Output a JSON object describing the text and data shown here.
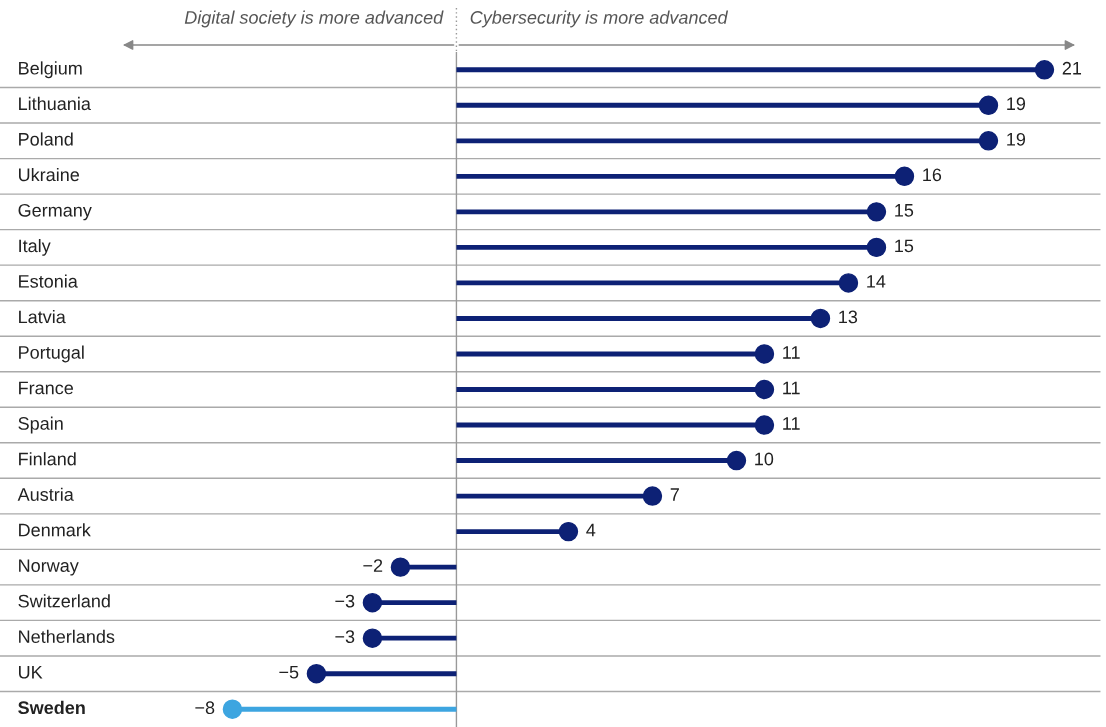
{
  "chart_data": {
    "type": "lollipop",
    "orientation": "horizontal",
    "categories": [
      "Belgium",
      "Lithuania",
      "Poland",
      "Ukraine",
      "Germany",
      "Italy",
      "Estonia",
      "Latvia",
      "Portugal",
      "France",
      "Spain",
      "Finland",
      "Austria",
      "Denmark",
      "Norway",
      "Switzerland",
      "Netherlands",
      "UK",
      "Sweden"
    ],
    "values": [
      21,
      19,
      19,
      16,
      15,
      15,
      14,
      13,
      11,
      11,
      11,
      10,
      7,
      4,
      -2,
      -3,
      -3,
      -5,
      -8
    ],
    "colors": [
      "#0d2175",
      "#0d2175",
      "#0d2175",
      "#0d2175",
      "#0d2175",
      "#0d2175",
      "#0d2175",
      "#0d2175",
      "#0d2175",
      "#0d2175",
      "#0d2175",
      "#0d2175",
      "#0d2175",
      "#0d2175",
      "#0d2175",
      "#0d2175",
      "#0d2175",
      "#0d2175",
      "#3da5e0"
    ],
    "data_labels": true,
    "xlim": [
      -16.3,
      23
    ],
    "tick_labels": "y",
    "grid": "y",
    "annotations": [
      "Digital society is more advanced",
      "Cybersecurity is more advanced"
    ]
  }
}
